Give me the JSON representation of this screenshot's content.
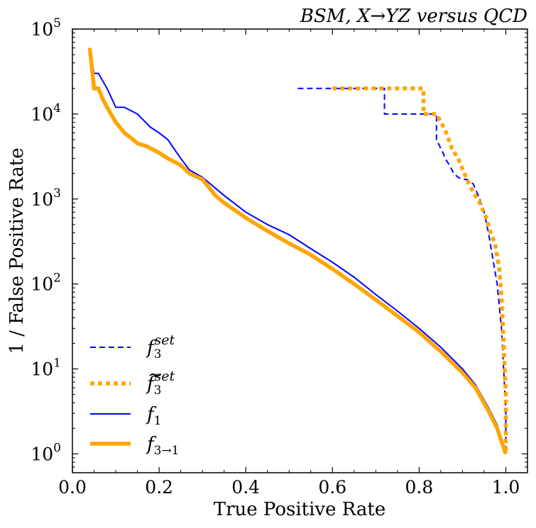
{
  "chart_data": {
    "type": "line",
    "title": "BSM, X→YZ versus QCD",
    "xlabel": "True Positive Rate",
    "ylabel": "1 / False Positive Rate",
    "xlim": [
      0.0,
      1.05
    ],
    "ylim": [
      0.6,
      100000
    ],
    "yscale": "log",
    "grid": false,
    "legend_position": "lower-left",
    "x_ticks": [
      {
        "value": 0.0,
        "label": "0.0"
      },
      {
        "value": 0.2,
        "label": "0.2"
      },
      {
        "value": 0.4,
        "label": "0.4"
      },
      {
        "value": 0.6,
        "label": "0.6"
      },
      {
        "value": 0.8,
        "label": "0.8"
      },
      {
        "value": 1.0,
        "label": "1.0"
      }
    ],
    "y_ticks": [
      {
        "value": 1,
        "base": "10",
        "exp": "0"
      },
      {
        "value": 10,
        "base": "10",
        "exp": "1"
      },
      {
        "value": 100,
        "base": "10",
        "exp": "2"
      },
      {
        "value": 1000,
        "base": "10",
        "exp": "3"
      },
      {
        "value": 10000,
        "base": "10",
        "exp": "4"
      },
      {
        "value": 100000,
        "base": "10",
        "exp": "5"
      }
    ],
    "series": [
      {
        "name": "f3set",
        "label_main": "f",
        "label_sub": "3",
        "label_sup": "set",
        "label_tilde": false,
        "color": "#0000ff",
        "style": "dashed",
        "step": true,
        "x": [
          0.52,
          0.72,
          0.72,
          0.84,
          0.84,
          0.855,
          0.86,
          0.87,
          0.88,
          0.89,
          0.9,
          0.91,
          0.925,
          0.94,
          0.95,
          0.96,
          0.97,
          0.98,
          0.99,
          0.995,
          1.0,
          1.0
        ],
        "y": [
          20000,
          20000,
          10000,
          10000,
          5000,
          3500,
          3000,
          2500,
          2000,
          1800,
          1700,
          1700,
          1500,
          1000,
          700,
          400,
          200,
          100,
          30,
          10,
          3,
          1
        ]
      },
      {
        "name": "f3set-tilde",
        "label_main": "f",
        "label_sub": "3",
        "label_sup": "set",
        "label_tilde": true,
        "color": "#ffa500",
        "style": "dotted",
        "step": true,
        "x": [
          0.6,
          0.81,
          0.81,
          0.84,
          0.86,
          0.875,
          0.89,
          0.91,
          0.925,
          0.94,
          0.955,
          0.965,
          0.975,
          0.985,
          0.99,
          0.995,
          1.0,
          1.0
        ],
        "y": [
          20000,
          20000,
          10000,
          10000,
          6500,
          4000,
          3000,
          1700,
          1200,
          900,
          600,
          400,
          300,
          150,
          70,
          20,
          5,
          1
        ]
      },
      {
        "name": "f1",
        "label_main": "f",
        "label_sub": "1",
        "label_sup": "",
        "label_tilde": false,
        "color": "#0000ff",
        "style": "solid",
        "step": false,
        "x": [
          0.04,
          0.05,
          0.06,
          0.08,
          0.1,
          0.12,
          0.15,
          0.18,
          0.2,
          0.22,
          0.25,
          0.27,
          0.3,
          0.35,
          0.4,
          0.45,
          0.5,
          0.55,
          0.6,
          0.65,
          0.7,
          0.75,
          0.8,
          0.85,
          0.9,
          0.93,
          0.96,
          0.98,
          0.99,
          1.0
        ],
        "y": [
          60000,
          30000,
          30000,
          20000,
          12000,
          12000,
          10000,
          7000,
          6000,
          5000,
          3000,
          2200,
          1800,
          1100,
          700,
          500,
          380,
          260,
          180,
          120,
          75,
          48,
          30,
          18,
          10,
          6.5,
          3.5,
          2.2,
          1.5,
          1
        ]
      },
      {
        "name": "f3to1",
        "label_main": "f",
        "label_sub": "3→1",
        "label_sup": "",
        "label_tilde": false,
        "color": "#ffa500",
        "style": "solid-thick",
        "step": false,
        "x": [
          0.04,
          0.05,
          0.06,
          0.07,
          0.08,
          0.1,
          0.12,
          0.14,
          0.15,
          0.17,
          0.2,
          0.22,
          0.25,
          0.27,
          0.3,
          0.33,
          0.35,
          0.4,
          0.45,
          0.5,
          0.55,
          0.6,
          0.65,
          0.7,
          0.75,
          0.8,
          0.85,
          0.9,
          0.93,
          0.96,
          0.98,
          0.99,
          1.0
        ],
        "y": [
          60000,
          20000,
          20000,
          15000,
          12000,
          8000,
          6000,
          5000,
          4500,
          4200,
          3500,
          3000,
          2500,
          2000,
          1700,
          1100,
          900,
          600,
          420,
          300,
          220,
          150,
          100,
          65,
          42,
          27,
          16,
          9,
          6,
          3.2,
          2,
          1.4,
          1
        ]
      }
    ]
  }
}
